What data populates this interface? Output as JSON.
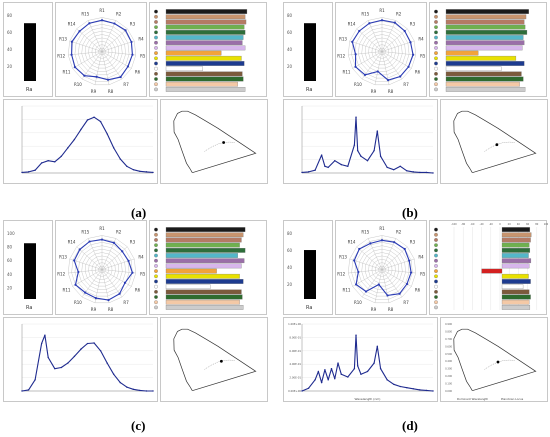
{
  "captions": [
    "(a)",
    "(b)",
    "(c)",
    "(d)"
  ],
  "colors": {
    "radar": "#2a3bb5",
    "spectrum": "#1f2b8f",
    "bar_palette": [
      "#1a1a1a",
      "#c8946e",
      "#b47a64",
      "#6fb04f",
      "#2e6e3a",
      "#53b7c9",
      "#9a6ea8",
      "#d7b6ec",
      "#f2a33a",
      "#e8e100",
      "#1d3b8f",
      "#ffffff",
      "#7c5a3c",
      "#2f6b2f",
      "#f4c9a6",
      "#cccccc"
    ],
    "chromaticity": "#333333"
  },
  "chart_data": [
    {
      "panel": "a",
      "type": "composite",
      "gauge": {
        "tick_labels": [
          "80",
          "60",
          "40",
          "20"
        ],
        "label": "Ra",
        "fill": 0.85
      },
      "radar": {
        "axis_labels": [
          "R1",
          "R2",
          "R3",
          "R4",
          "R5",
          "R6",
          "R7",
          "R8",
          "R9",
          "R10",
          "R11",
          "R12",
          "R13",
          "R14",
          "R15"
        ],
        "values": [
          92,
          90,
          93,
          91,
          90,
          88,
          93,
          85,
          76,
          88,
          92,
          90,
          93,
          89,
          91
        ]
      },
      "bars": {
        "values": [
          88,
          86,
          87,
          85,
          86,
          84,
          83,
          86,
          60,
          82,
          85,
          40,
          83,
          84,
          78,
          86
        ]
      },
      "spectrum": {
        "type": "line",
        "x": [
          380,
          400,
          420,
          440,
          460,
          480,
          500,
          520,
          540,
          560,
          580,
          600,
          620,
          640,
          660,
          680,
          700,
          720,
          740,
          760,
          780
        ],
        "y": [
          0.01,
          0.02,
          0.05,
          0.18,
          0.22,
          0.2,
          0.3,
          0.45,
          0.6,
          0.78,
          0.95,
          1.0,
          0.92,
          0.7,
          0.45,
          0.25,
          0.12,
          0.06,
          0.03,
          0.02,
          0.01
        ],
        "ylim": [
          0,
          1.2
        ]
      },
      "chromaticity": {
        "point": [
          0.45,
          0.41
        ]
      }
    },
    {
      "panel": "b",
      "type": "composite",
      "gauge": {
        "tick_labels": [
          "80",
          "60",
          "40",
          "20"
        ],
        "label": "Ra",
        "fill": 0.85
      },
      "radar": {
        "axis_labels": [
          "R1",
          "R2",
          "R3",
          "R4",
          "R5",
          "R6",
          "R7",
          "R8",
          "R9",
          "R10",
          "R11",
          "R12",
          "R13",
          "R14",
          "R15"
        ],
        "values": [
          92,
          93,
          90,
          88,
          92,
          90,
          91,
          86,
          60,
          85,
          90,
          78,
          92,
          90,
          91
        ]
      },
      "bars": {
        "values": [
          90,
          87,
          85,
          86,
          88,
          84,
          85,
          83,
          35,
          76,
          85,
          60,
          82,
          84,
          80,
          86
        ]
      },
      "spectrum": {
        "type": "line",
        "x": [
          380,
          400,
          420,
          440,
          450,
          460,
          480,
          500,
          520,
          540,
          545,
          550,
          560,
          580,
          600,
          610,
          620,
          640,
          660,
          680,
          700,
          720,
          740,
          760,
          780
        ],
        "y": [
          0.01,
          0.02,
          0.05,
          0.32,
          0.12,
          0.1,
          0.22,
          0.15,
          0.12,
          0.5,
          1.0,
          0.4,
          0.3,
          0.22,
          0.4,
          0.75,
          0.3,
          0.1,
          0.06,
          0.12,
          0.04,
          0.02,
          0.01,
          0.01,
          0.0
        ],
        "ylim": [
          0,
          1.2
        ]
      },
      "chromaticity": {
        "point": [
          0.39,
          0.38
        ]
      }
    },
    {
      "panel": "c",
      "type": "composite",
      "gauge": {
        "tick_labels": [
          "100",
          "80",
          "60",
          "40",
          "20"
        ],
        "label": "Ra",
        "fill": 0.82
      },
      "radar": {
        "axis_labels": [
          "R1",
          "R2",
          "R3",
          "R4",
          "R5",
          "R6",
          "R7",
          "R8",
          "R9",
          "R10",
          "R11",
          "R12",
          "R13",
          "R14",
          "R15"
        ],
        "values": [
          88,
          86,
          80,
          82,
          90,
          78,
          88,
          92,
          86,
          84,
          90,
          70,
          86,
          88,
          90
        ]
      },
      "bars": {
        "values": [
          86,
          84,
          82,
          80,
          86,
          78,
          85,
          82,
          55,
          80,
          84,
          48,
          82,
          83,
          80,
          84
        ]
      },
      "spectrum": {
        "type": "line",
        "x": [
          380,
          400,
          420,
          440,
          450,
          460,
          480,
          500,
          520,
          540,
          560,
          580,
          600,
          620,
          640,
          660,
          680,
          700,
          720,
          740,
          760,
          780
        ],
        "y": [
          0.0,
          0.02,
          0.2,
          0.85,
          1.0,
          0.6,
          0.4,
          0.42,
          0.5,
          0.62,
          0.75,
          0.85,
          0.86,
          0.72,
          0.5,
          0.3,
          0.15,
          0.07,
          0.03,
          0.01,
          0.0,
          0.0
        ],
        "ylim": [
          0,
          1.2
        ]
      },
      "chromaticity": {
        "point": [
          0.43,
          0.4
        ]
      }
    },
    {
      "panel": "d",
      "type": "composite",
      "gauge": {
        "tick_labels": [
          "80",
          "60",
          "40",
          "20"
        ],
        "label": "Ra",
        "fill": 0.72
      },
      "radar": {
        "axis_labels": [
          "R1",
          "R2",
          "R3",
          "R4",
          "R5",
          "R6",
          "R7",
          "R8",
          "R9",
          "R10",
          "R11",
          "R12",
          "R13",
          "R14",
          "R15"
        ],
        "values": [
          86,
          88,
          90,
          84,
          86,
          85,
          88,
          78,
          45,
          80,
          88,
          70,
          86,
          90,
          84
        ]
      },
      "bars": {
        "values": [
          82,
          86,
          84,
          80,
          82,
          78,
          85,
          80,
          -60,
          78,
          84,
          62,
          80,
          84,
          80,
          82
        ]
      },
      "bar_axis_labels": [
        "-100",
        "-80",
        "-60",
        "-40",
        "-20",
        "0",
        "20",
        "40",
        "60",
        "80",
        "100"
      ],
      "spectrum": {
        "type": "line",
        "x": [
          380,
          400,
          420,
          430,
          440,
          450,
          460,
          470,
          480,
          490,
          500,
          520,
          540,
          545,
          550,
          560,
          580,
          600,
          610,
          620,
          640,
          660,
          680,
          700,
          720,
          740,
          760,
          780
        ],
        "y": [
          0.0,
          0.05,
          0.2,
          0.35,
          0.15,
          0.38,
          0.2,
          0.4,
          0.22,
          0.5,
          0.3,
          0.25,
          0.4,
          1.0,
          0.45,
          0.3,
          0.35,
          0.5,
          0.8,
          0.4,
          0.2,
          0.12,
          0.08,
          0.06,
          0.04,
          0.02,
          0.01,
          0.0
        ],
        "ylim": [
          0,
          1.2
        ],
        "xlabel": "Wavelength (nm)",
        "y_tick_labels": [
          "1.00E+00",
          "8.00E-01",
          "6.00E-01",
          "4.00E-01",
          "2.00E-01",
          "0.00E+00"
        ]
      },
      "chromaticity": {
        "point": [
          0.4,
          0.39
        ],
        "y_tick_labels": [
          "0.900",
          "0.800",
          "0.700",
          "0.600",
          "0.500",
          "0.400",
          "0.300",
          "0.200",
          "0.100",
          "0.000"
        ],
        "legend": [
          "Dominant Wavelength",
          "Planckian Locus"
        ]
      }
    }
  ]
}
